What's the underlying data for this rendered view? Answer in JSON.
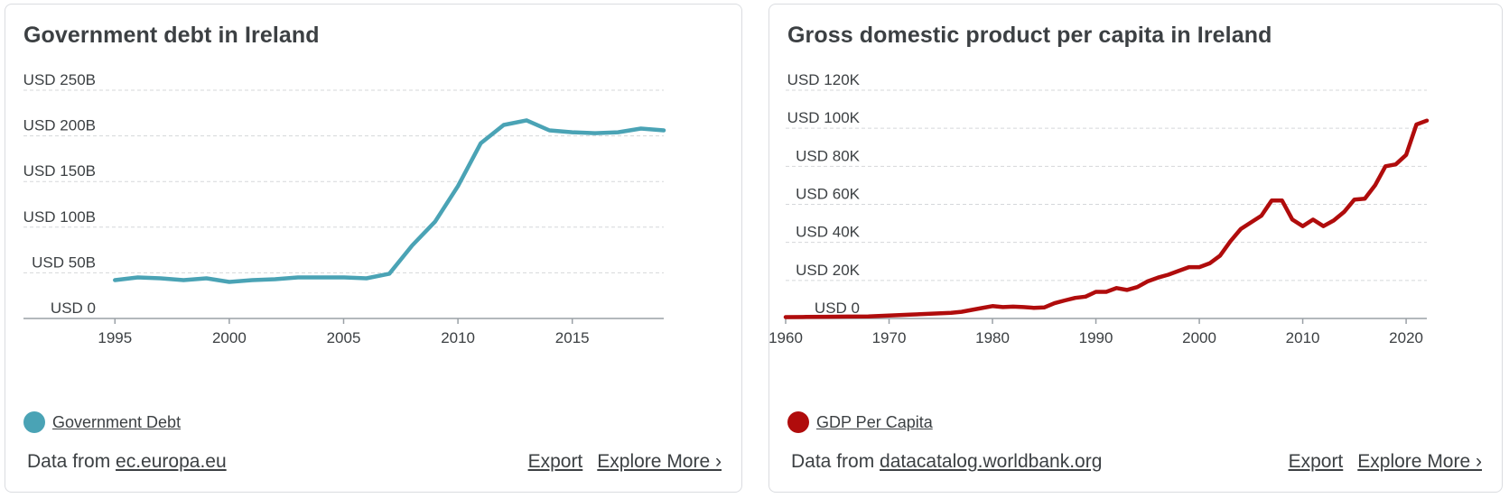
{
  "cards": [
    {
      "title": "Government debt in Ireland",
      "legend_label": "Government Debt",
      "footer": {
        "data_from_prefix": "Data from",
        "source": "ec.europa.eu",
        "export": "Export",
        "explore_more": "Explore More ›"
      }
    },
    {
      "title": "Gross domestic product per capita in Ireland",
      "legend_label": "GDP Per Capita",
      "footer": {
        "data_from_prefix": "Data from",
        "source": "datacatalog.worldbank.org",
        "export": "Export",
        "explore_more": "Explore More ›"
      }
    }
  ],
  "chart_data": [
    {
      "type": "line",
      "title": "Government debt in Ireland",
      "xlabel": "",
      "ylabel": "",
      "xlim": [
        1991,
        2019
      ],
      "ylim": [
        0,
        250
      ],
      "x_ticks": [
        1995,
        2000,
        2005,
        2010,
        2015
      ],
      "x_tick_labels": [
        "1995",
        "2000",
        "2005",
        "2010",
        "2015"
      ],
      "y_ticks": [
        0,
        50,
        100,
        150,
        200,
        250
      ],
      "y_tick_labels": [
        "USD 0",
        "USD 50B",
        "USD 100B",
        "USD 150B",
        "USD 200B",
        "USD 250B"
      ],
      "grid": "horizontal dashed",
      "legend": "bottom-left",
      "color": "#4aa3b5",
      "series": [
        {
          "name": "Government Debt",
          "x": [
            1995,
            1996,
            1997,
            1998,
            1999,
            2000,
            2001,
            2002,
            2003,
            2004,
            2005,
            2006,
            2007,
            2008,
            2009,
            2010,
            2011,
            2012,
            2013,
            2014,
            2015,
            2016,
            2017,
            2018,
            2019
          ],
          "values": [
            42,
            45,
            44,
            42,
            44,
            40,
            42,
            43,
            45,
            45,
            45,
            44,
            49,
            80,
            106,
            145,
            192,
            212,
            217,
            206,
            204,
            203,
            204,
            208,
            206
          ]
        }
      ]
    },
    {
      "type": "line",
      "title": "Gross domestic product per capita in Ireland",
      "xlabel": "",
      "ylabel": "",
      "xlim": [
        1960,
        2022
      ],
      "ylim": [
        0,
        120
      ],
      "x_ticks": [
        1960,
        1970,
        1980,
        1990,
        2000,
        2010,
        2020
      ],
      "x_tick_labels": [
        "1960",
        "1970",
        "1980",
        "1990",
        "2000",
        "2010",
        "2020"
      ],
      "y_ticks": [
        0,
        20,
        40,
        60,
        80,
        100,
        120
      ],
      "y_tick_labels": [
        "USD 0",
        "USD 20K",
        "USD 40K",
        "USD 60K",
        "USD 80K",
        "USD 100K",
        "USD 120K"
      ],
      "grid": "horizontal dashed",
      "legend": "bottom-left",
      "color": "#b00c0c",
      "series": [
        {
          "name": "GDP Per Capita",
          "x": [
            1960,
            1962,
            1964,
            1966,
            1968,
            1970,
            1972,
            1974,
            1976,
            1977,
            1978,
            1979,
            1980,
            1981,
            1982,
            1983,
            1984,
            1985,
            1986,
            1987,
            1988,
            1989,
            1990,
            1991,
            1992,
            1993,
            1994,
            1995,
            1996,
            1997,
            1998,
            1999,
            2000,
            2001,
            2002,
            2003,
            2004,
            2005,
            2006,
            2007,
            2008,
            2009,
            2010,
            2011,
            2012,
            2013,
            2014,
            2015,
            2016,
            2017,
            2018,
            2019,
            2020,
            2021,
            2022
          ],
          "values": [
            0.7,
            0.8,
            0.9,
            1.0,
            1.1,
            1.5,
            2.0,
            2.5,
            3.0,
            3.5,
            4.5,
            5.5,
            6.5,
            6.0,
            6.2,
            6.0,
            5.6,
            5.8,
            8.0,
            9.5,
            10.8,
            11.5,
            14.0,
            14.0,
            16.0,
            15.0,
            16.5,
            19.5,
            21.5,
            23.0,
            25.0,
            27.0,
            27.0,
            29.0,
            33.0,
            40.5,
            47.0,
            50.5,
            54.0,
            62.0,
            62.0,
            52.0,
            48.5,
            52.0,
            48.5,
            51.5,
            56.0,
            62.5,
            63.0,
            70.0,
            80.0,
            81.0,
            86.0,
            102.0,
            104.0
          ]
        }
      ]
    }
  ]
}
